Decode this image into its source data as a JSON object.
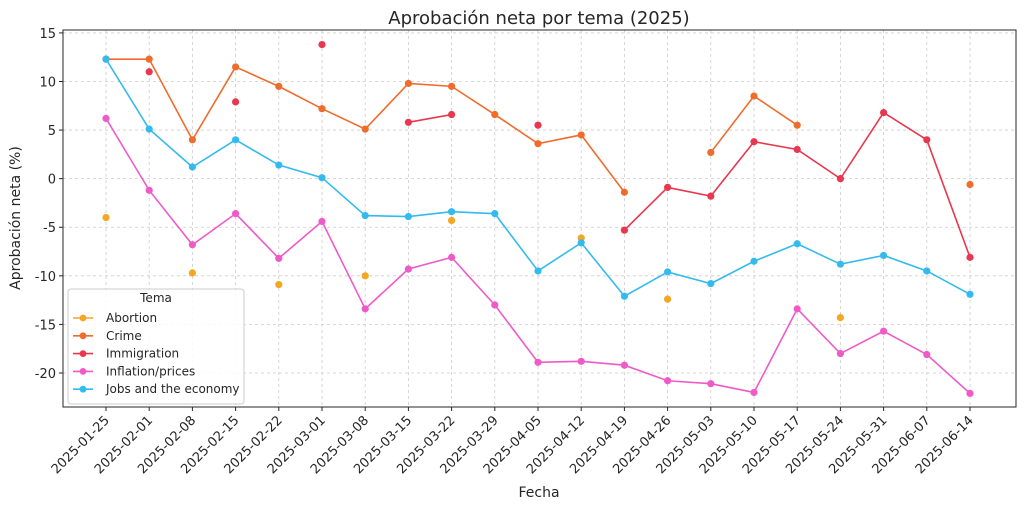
{
  "chart_data": {
    "type": "line",
    "title": "Aprobación neta por tema (2025)",
    "xlabel": "Fecha",
    "ylabel": "Aprobación neta (%)",
    "ylim": [
      -23.5,
      15.3
    ],
    "yticks": [
      -20,
      -15,
      -10,
      -5,
      0,
      5,
      10,
      15
    ],
    "grid": true,
    "legend": {
      "title": "Tema",
      "placement": "lower-left"
    },
    "x": [
      "2025-01-25",
      "2025-02-01",
      "2025-02-08",
      "2025-02-15",
      "2025-02-22",
      "2025-03-01",
      "2025-03-08",
      "2025-03-15",
      "2025-03-22",
      "2025-03-29",
      "2025-04-05",
      "2025-04-12",
      "2025-04-19",
      "2025-04-26",
      "2025-05-03",
      "2025-05-10",
      "2025-05-17",
      "2025-05-24",
      "2025-05-31",
      "2025-06-07",
      "2025-06-14"
    ],
    "series": [
      {
        "name": "Abortion",
        "color": "#f5a623",
        "values": [
          -4.0,
          null,
          -9.7,
          null,
          -10.9,
          null,
          -10.0,
          null,
          -4.3,
          null,
          null,
          -6.1,
          null,
          -12.4,
          null,
          null,
          null,
          -14.3,
          null,
          null,
          null
        ]
      },
      {
        "name": "Crime",
        "color": "#ef6c2d",
        "values": [
          12.3,
          12.3,
          4.0,
          11.5,
          9.5,
          7.2,
          5.1,
          9.8,
          9.5,
          6.6,
          3.6,
          4.5,
          -1.4,
          null,
          2.7,
          8.5,
          5.5,
          null,
          null,
          null,
          -0.6
        ]
      },
      {
        "name": "Immigration",
        "color": "#e8384f",
        "values": [
          null,
          11.0,
          null,
          7.9,
          null,
          13.8,
          null,
          5.8,
          6.6,
          null,
          5.5,
          null,
          -5.3,
          -0.9,
          -1.8,
          3.8,
          3.0,
          0.0,
          6.8,
          4.0,
          -8.1
        ]
      },
      {
        "name": "Inflation/prices",
        "color": "#f05ac8",
        "values": [
          6.2,
          -1.2,
          -6.8,
          -3.6,
          -8.2,
          -4.4,
          -13.4,
          -9.3,
          -8.1,
          -13.0,
          -18.9,
          -18.8,
          -19.2,
          -20.8,
          -21.1,
          -22.0,
          -13.4,
          -18.0,
          -15.7,
          -18.1,
          -22.1
        ]
      },
      {
        "name": "Jobs and the economy",
        "color": "#33bbee",
        "values": [
          12.3,
          5.1,
          1.2,
          4.0,
          1.4,
          0.1,
          -3.8,
          -3.9,
          -3.4,
          -3.6,
          -9.5,
          -6.6,
          -12.1,
          -9.6,
          -10.8,
          -8.5,
          -6.7,
          -8.8,
          -7.9,
          -9.5,
          -11.9
        ]
      }
    ]
  }
}
